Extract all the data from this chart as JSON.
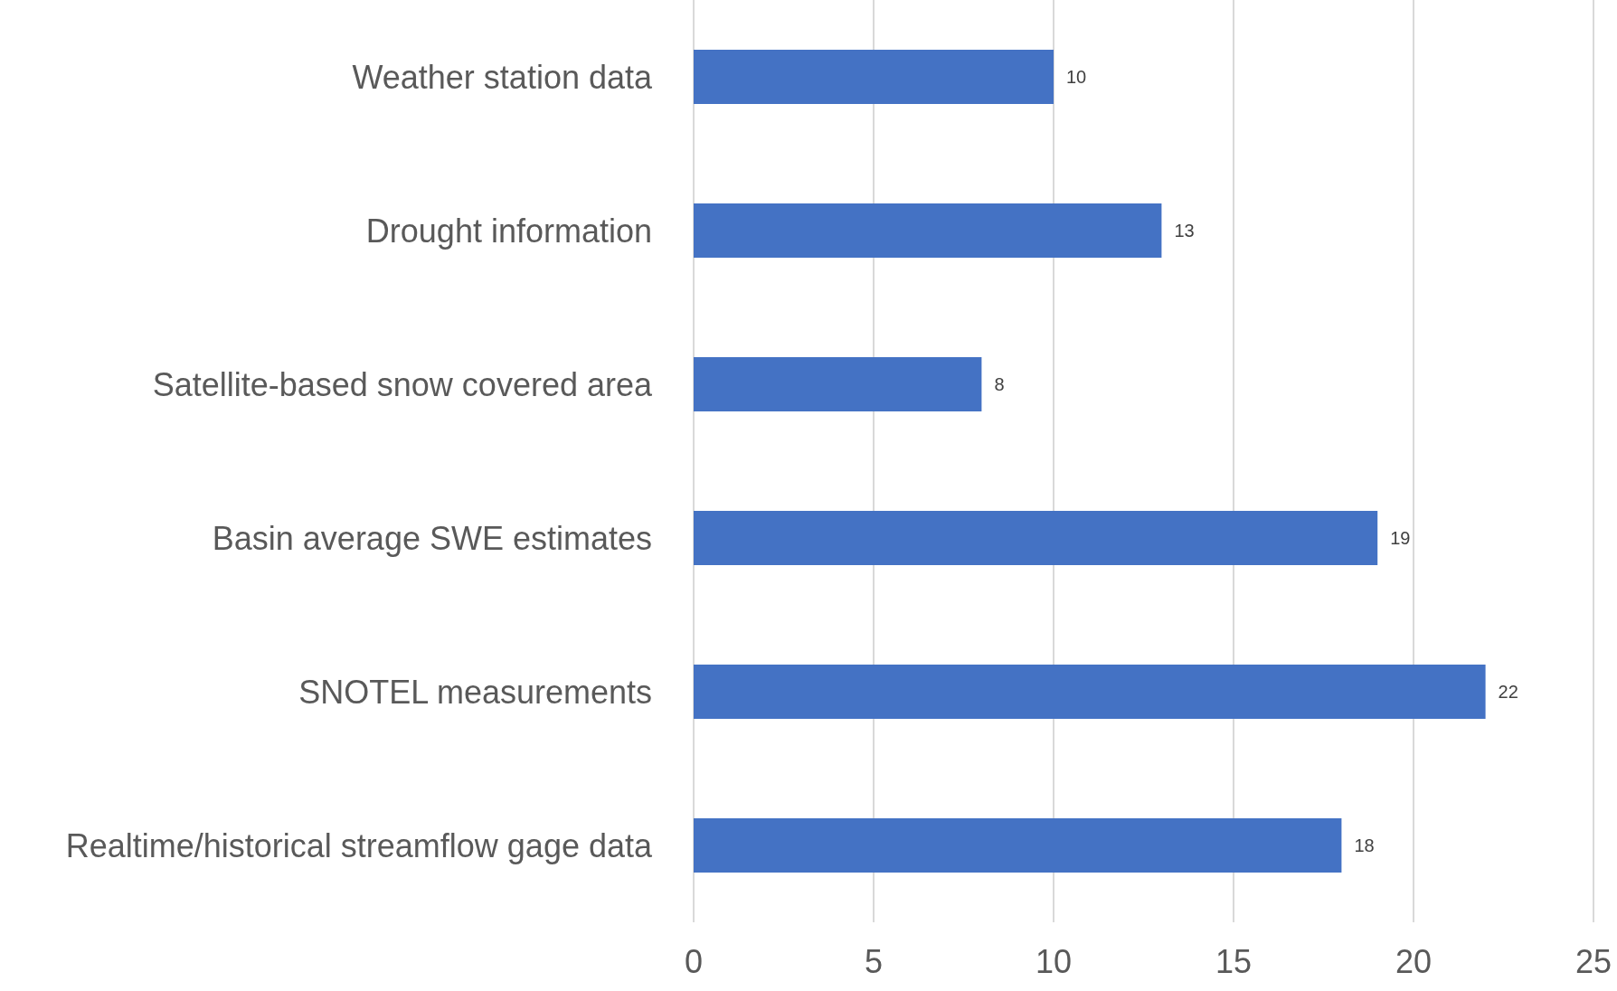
{
  "chart_data": {
    "type": "bar",
    "orientation": "horizontal",
    "categories": [
      "Weather station data",
      "Drought information",
      "Satellite-based snow covered area",
      "Basin average SWE estimates",
      "SNOTEL measurements",
      "Realtime/historical streamflow gage data"
    ],
    "values": [
      10,
      13,
      8,
      19,
      22,
      18
    ],
    "color": "#4472c4",
    "xlim": [
      0,
      25
    ],
    "xticks": [
      0,
      5,
      10,
      15,
      20,
      25
    ],
    "grid": "x",
    "data_labels": true
  }
}
